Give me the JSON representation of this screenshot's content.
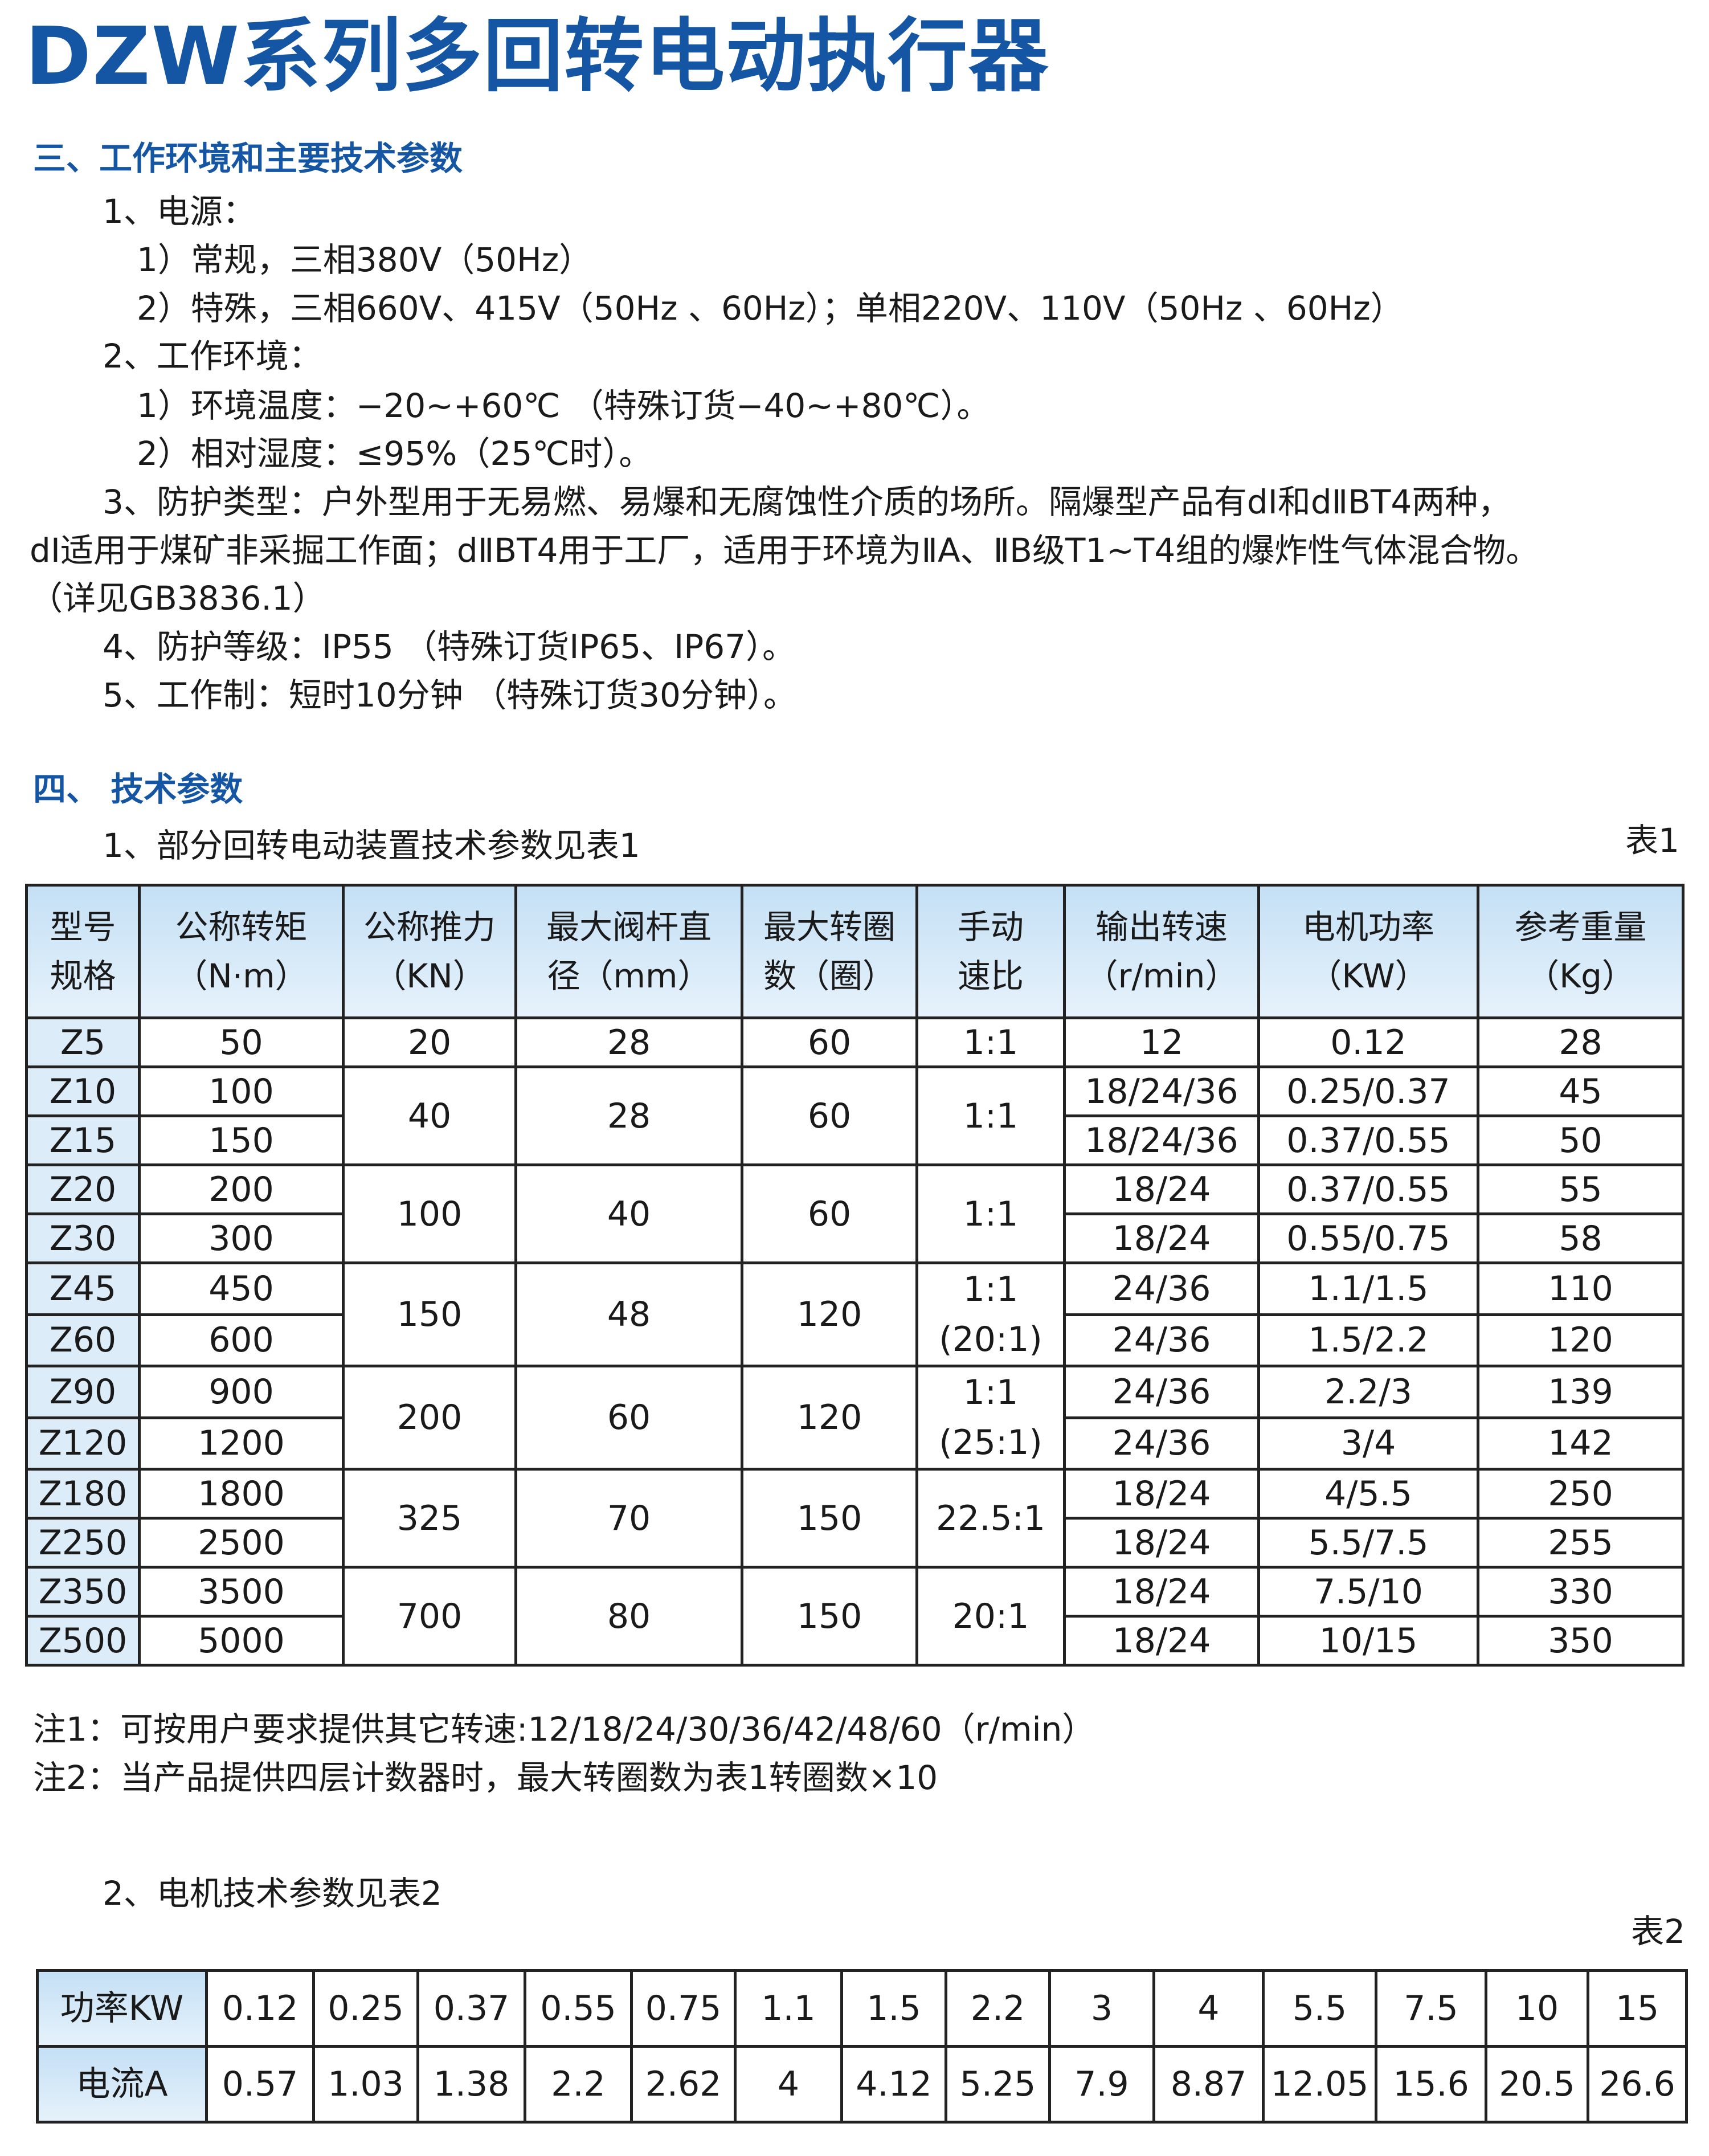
{
  "title": "DZW系列多回转电动执行器",
  "section3": {
    "heading": "三、工作环境和主要技术参数",
    "lines": [
      "1、电源：",
      "1）常规，三相380V（50Hz）",
      "2）特殊，三相660V、415V（50Hz 、60Hz）；单相220V、110V（50Hz 、60Hz）",
      "2、工作环境：",
      "1）环境温度：−20~+60℃ （特殊订货−40~+80℃）。",
      "2）相对湿度：≤95%（25℃时）。",
      "3、防护类型：户外型用于无易燃、易爆和无腐蚀性介质的场所。隔爆型产品有dⅠ和dⅡBT4两种，",
      "dⅠ适用于煤矿非采掘工作面；dⅡBT4用于工厂，适用于环境为ⅡA、ⅡB级T1~T4组的爆炸性气体混合物。",
      "（详见GB3836.1）",
      "4、防护等级：IP55 （特殊订货IP65、IP67）。",
      "5、工作制：短时10分钟 （特殊订货30分钟）。"
    ]
  },
  "section4": {
    "heading": "四、 技术参数",
    "table1_caption": "1、部分回转电动装置技术参数见表1",
    "table1_label": "表1",
    "table1": {
      "headers": [
        [
          "型号",
          "规格"
        ],
        [
          "公称转矩",
          "（N·m）"
        ],
        [
          "公称推力",
          "（KN）"
        ],
        [
          "最大阀杆直",
          "径（mm）"
        ],
        [
          "最大转圈",
          "数（圈）"
        ],
        [
          "手动",
          "速比"
        ],
        [
          "输出转速",
          "（r/min）"
        ],
        [
          "电机功率",
          "（KW）"
        ],
        [
          "参考重量",
          "（Kg）"
        ]
      ],
      "groups": [
        {
          "thrust": "20",
          "stem": "28",
          "turns": "60",
          "ratio": [
            "1:1"
          ],
          "rows": [
            {
              "model": "Z5",
              "torque": "50",
              "speed": "12",
              "power": "0.12",
              "weight": "28"
            }
          ]
        },
        {
          "thrust": "40",
          "stem": "28",
          "turns": "60",
          "ratio": [
            "1:1"
          ],
          "rows": [
            {
              "model": "Z10",
              "torque": "100",
              "speed": "18/24/36",
              "power": "0.25/0.37",
              "weight": "45"
            },
            {
              "model": "Z15",
              "torque": "150",
              "speed": "18/24/36",
              "power": "0.37/0.55",
              "weight": "50"
            }
          ]
        },
        {
          "thrust": "100",
          "stem": "40",
          "turns": "60",
          "ratio": [
            "1:1"
          ],
          "rows": [
            {
              "model": "Z20",
              "torque": "200",
              "speed": "18/24",
              "power": "0.37/0.55",
              "weight": "55"
            },
            {
              "model": "Z30",
              "torque": "300",
              "speed": "18/24",
              "power": "0.55/0.75",
              "weight": "58"
            }
          ]
        },
        {
          "thrust": "150",
          "stem": "48",
          "turns": "120",
          "ratio": [
            "1:1",
            "(20:1)"
          ],
          "rows": [
            {
              "model": "Z45",
              "torque": "450",
              "speed": "24/36",
              "power": "1.1/1.5",
              "weight": "110"
            },
            {
              "model": "Z60",
              "torque": "600",
              "speed": "24/36",
              "power": "1.5/2.2",
              "weight": "120"
            }
          ]
        },
        {
          "thrust": "200",
          "stem": "60",
          "turns": "120",
          "ratio": [
            "1:1",
            "(25:1)"
          ],
          "rows": [
            {
              "model": "Z90",
              "torque": "900",
              "speed": "24/36",
              "power": "2.2/3",
              "weight": "139"
            },
            {
              "model": "Z120",
              "torque": "1200",
              "speed": "24/36",
              "power": "3/4",
              "weight": "142"
            }
          ]
        },
        {
          "thrust": "325",
          "stem": "70",
          "turns": "150",
          "ratio": [
            "22.5:1"
          ],
          "rows": [
            {
              "model": "Z180",
              "torque": "1800",
              "speed": "18/24",
              "power": "4/5.5",
              "weight": "250"
            },
            {
              "model": "Z250",
              "torque": "2500",
              "speed": "18/24",
              "power": "5.5/7.5",
              "weight": "255"
            }
          ]
        },
        {
          "thrust": "700",
          "stem": "80",
          "turns": "150",
          "ratio": [
            "20:1"
          ],
          "rows": [
            {
              "model": "Z350",
              "torque": "3500",
              "speed": "18/24",
              "power": "7.5/10",
              "weight": "330"
            },
            {
              "model": "Z500",
              "torque": "5000",
              "speed": "18/24",
              "power": "10/15",
              "weight": "350"
            }
          ]
        }
      ]
    },
    "note1": "注1：可按用户要求提供其它转速:12/18/24/30/36/42/48/60（r/min）",
    "note2": "注2：当产品提供四层计数器时，最大转圈数为表1转圈数×10",
    "table2_caption": "2、电机技术参数见表2",
    "table2_label": "表2",
    "table2": {
      "rows": [
        {
          "label": "功率KW",
          "values": [
            "0.12",
            "0.25",
            "0.37",
            "0.55",
            "0.75",
            "1.1",
            "1.5",
            "2.2",
            "3",
            "4",
            "5.5",
            "7.5",
            "10",
            "15"
          ]
        },
        {
          "label": "电流A",
          "values": [
            "0.57",
            "1.03",
            "1.38",
            "2.2",
            "2.62",
            "4",
            "4.12",
            "5.25",
            "7.9",
            "8.87",
            "12.05",
            "15.6",
            "20.5",
            "26.6"
          ]
        }
      ]
    }
  },
  "colors": {
    "heading": "#1556a4",
    "header_fill": "#cfe6f7",
    "model_fill": "#dcecf8"
  }
}
